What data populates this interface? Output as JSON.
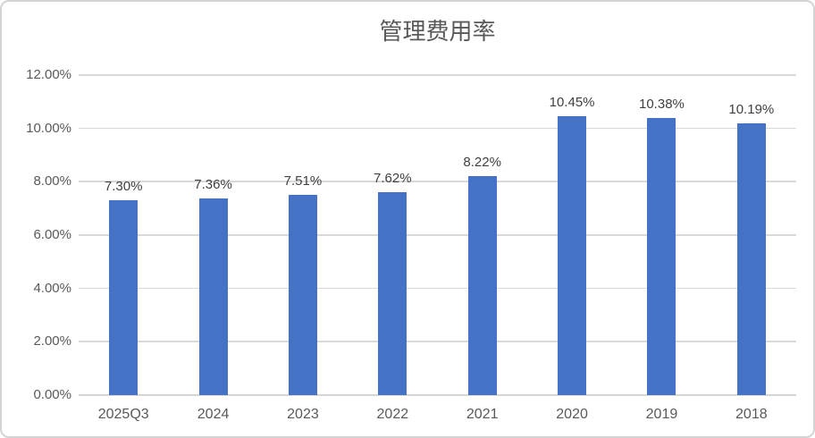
{
  "window": {
    "background_color": "#ffffff",
    "border_color": "#d3d3d3"
  },
  "chart_data": {
    "type": "bar",
    "title": "管理费用率",
    "categories": [
      "2025Q3",
      "2024",
      "2023",
      "2022",
      "2021",
      "2020",
      "2019",
      "2018"
    ],
    "values": [
      7.3,
      7.36,
      7.51,
      7.62,
      8.22,
      10.45,
      10.38,
      10.19
    ],
    "value_labels": [
      "7.30%",
      "7.36%",
      "7.51%",
      "7.62%",
      "8.22%",
      "10.45%",
      "10.38%",
      "10.19%"
    ],
    "ylabel": "",
    "xlabel": "",
    "ylim": [
      0,
      12
    ],
    "y_tick_values": [
      0,
      2,
      4,
      6,
      8,
      10,
      12
    ],
    "y_tick_labels": [
      "0.00%",
      "2.00%",
      "4.00%",
      "6.00%",
      "8.00%",
      "10.00%",
      "12.00%"
    ],
    "grid": true,
    "legend_position": "none",
    "bar_color": "#4472c4",
    "gridline_color": "#d9d9d9",
    "axis_label_color": "#595959",
    "data_label_color": "#404040",
    "title_color": "#595959"
  }
}
